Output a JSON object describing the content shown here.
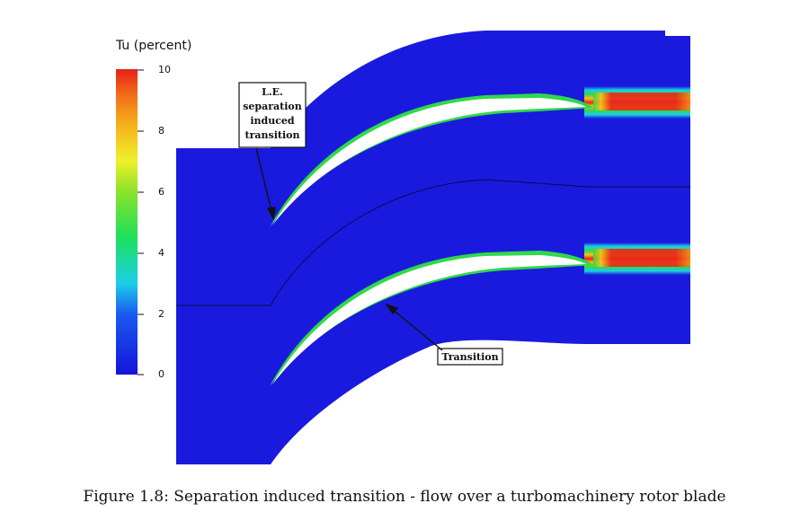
{
  "legend": {
    "title": "Tu (percent)",
    "min": 0,
    "max": 10,
    "ticks": [
      "10",
      "8",
      "6",
      "4",
      "2",
      "0"
    ]
  },
  "annotations": {
    "le_separation": [
      "L.E.",
      "separation",
      "induced",
      "transition"
    ],
    "transition": "Transition"
  },
  "caption": "Figure 1.8: Separation induced transition - flow over a turbomachinery rotor blade",
  "colors": {
    "flow_background": "#1a1adf",
    "wake_peak": "#e8281a",
    "wake_mid": "#f5c21a",
    "shear_layer": "#2fd94a"
  }
}
